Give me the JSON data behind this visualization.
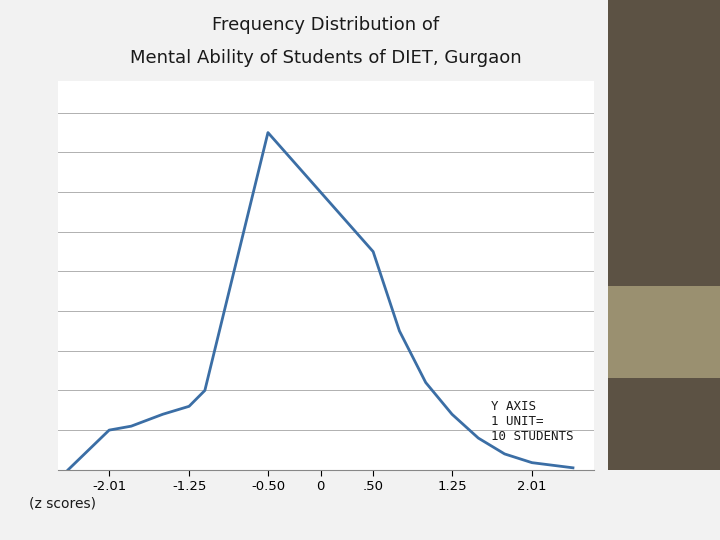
{
  "title_line1": "Frequency Distribution of",
  "title_line2": "Mental Ability of Students of DIET, Gurgaon",
  "xlabel": "(z scores)",
  "x_ticks": [
    -2.01,
    -1.25,
    -0.5,
    0,
    0.5,
    1.25,
    2.01
  ],
  "x_tick_labels": [
    "-2.01",
    "-1.25",
    "-0.50",
    "0",
    ".50",
    "1.25",
    "2.01"
  ],
  "x_data": [
    -2.4,
    -2.01,
    -1.8,
    -1.5,
    -1.25,
    -1.1,
    -0.5,
    0.0,
    0.5,
    0.75,
    1.0,
    1.25,
    1.5,
    1.75,
    2.01,
    2.4
  ],
  "y_data": [
    0.0,
    1.0,
    1.1,
    1.4,
    1.6,
    2.0,
    8.5,
    7.0,
    5.5,
    3.5,
    2.2,
    1.4,
    0.8,
    0.4,
    0.18,
    0.05
  ],
  "line_color": "#3b6ea5",
  "line_width": 2.0,
  "background_color": "#f2f2f2",
  "plot_bg_color": "#ffffff",
  "title_fontsize": 13,
  "title_fontweight": "normal",
  "xlabel_fontsize": 10,
  "y_axis_label": "Y AXIS\n1 UNIT=\n10 STUDENTS",
  "y_axis_label_fontsize": 9,
  "ylim": [
    0,
    9.8
  ],
  "xlim": [
    -2.5,
    2.6
  ],
  "grid_color": "#b0b0b0",
  "right_panel_dark": "#5c5244",
  "right_panel_mid": "#9a9070",
  "right_panel_dark2": "#5c5244",
  "yticks": [
    0,
    1,
    2,
    3,
    4,
    5,
    6,
    7,
    8,
    9
  ]
}
